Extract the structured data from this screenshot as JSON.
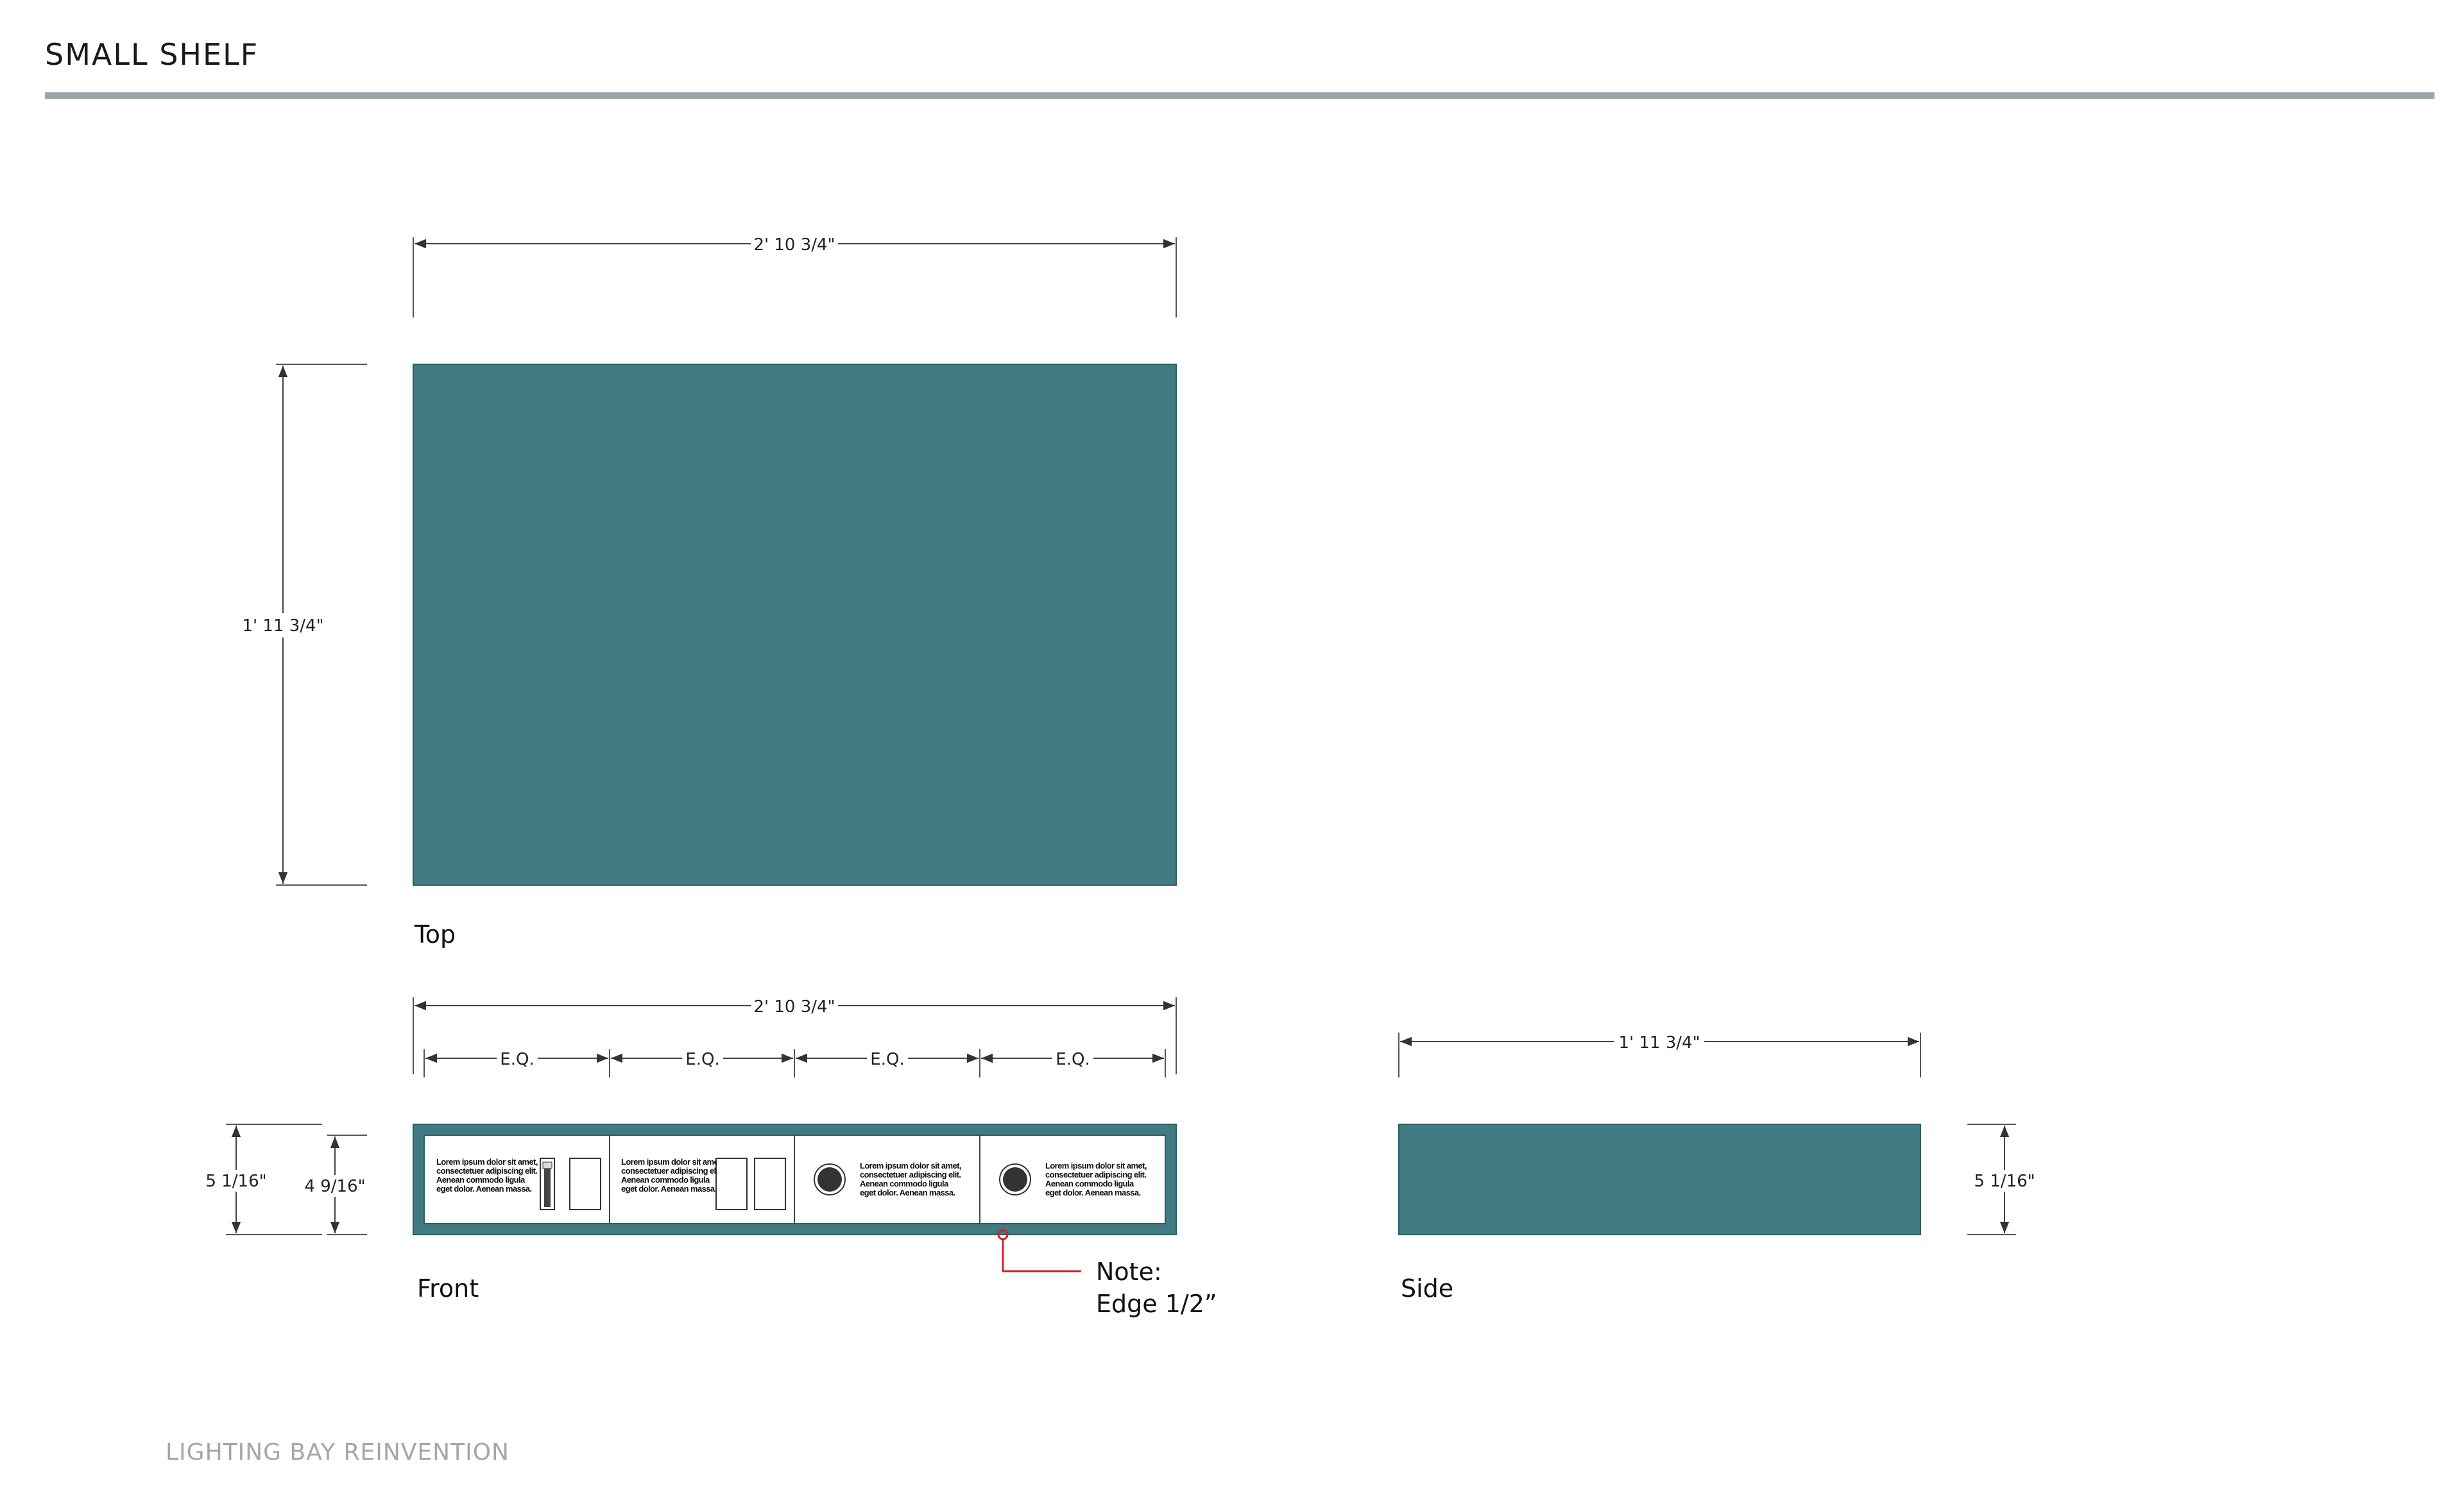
{
  "header": {
    "title": "SMALL SHELF"
  },
  "footer": {
    "text": "LIGHTING BAY REINVENTION"
  },
  "colors": {
    "panel": "#417b82",
    "panel_border": "#2d5c62",
    "rule": "#9aa3ab",
    "note": "#d0202a",
    "dim_line": "#444444"
  },
  "views": {
    "top": {
      "label": "Top",
      "width_dim": "2' 10 3/4\"",
      "height_dim": "1' 11 3/4\""
    },
    "front": {
      "label": "Front",
      "width_dim": "2' 10 3/4\"",
      "outer_height_dim": "5 1/16\"",
      "inner_height_dim": "4 9/16\"",
      "segments": [
        "E.Q.",
        "E.Q.",
        "E.Q.",
        "E.Q."
      ],
      "modules": [
        {
          "text": [
            "Lorem ipsum dolor sit amet,",
            "consectetuer adipiscing elit.",
            "Aenean commodo ligula",
            "eget dolor. Aenean massa."
          ],
          "device": "slider-switch-icon"
        },
        {
          "text": [
            "Lorem ipsum dolor sit amet,",
            "consectetuer adipiscing elit.",
            "Aenean commodo ligula",
            "eget dolor. Aenean massa."
          ],
          "device": "double-rocker-icon"
        },
        {
          "text": [
            "Lorem ipsum dolor sit amet,",
            "consectetuer adipiscing elit.",
            "Aenean commodo ligula",
            "eget dolor. Aenean massa."
          ],
          "device": "round-button-icon"
        },
        {
          "text": [
            "Lorem ipsum dolor sit amet,",
            "consectetuer adipiscing elit.",
            "Aenean commodo ligula",
            "eget dolor. Aenean massa."
          ],
          "device": "round-button-icon"
        }
      ],
      "note": {
        "line1": "Note:",
        "line2": "Edge 1/2”"
      }
    },
    "side": {
      "label": "Side",
      "width_dim": "1' 11 3/4\"",
      "height_dim": "5 1/16\""
    }
  }
}
